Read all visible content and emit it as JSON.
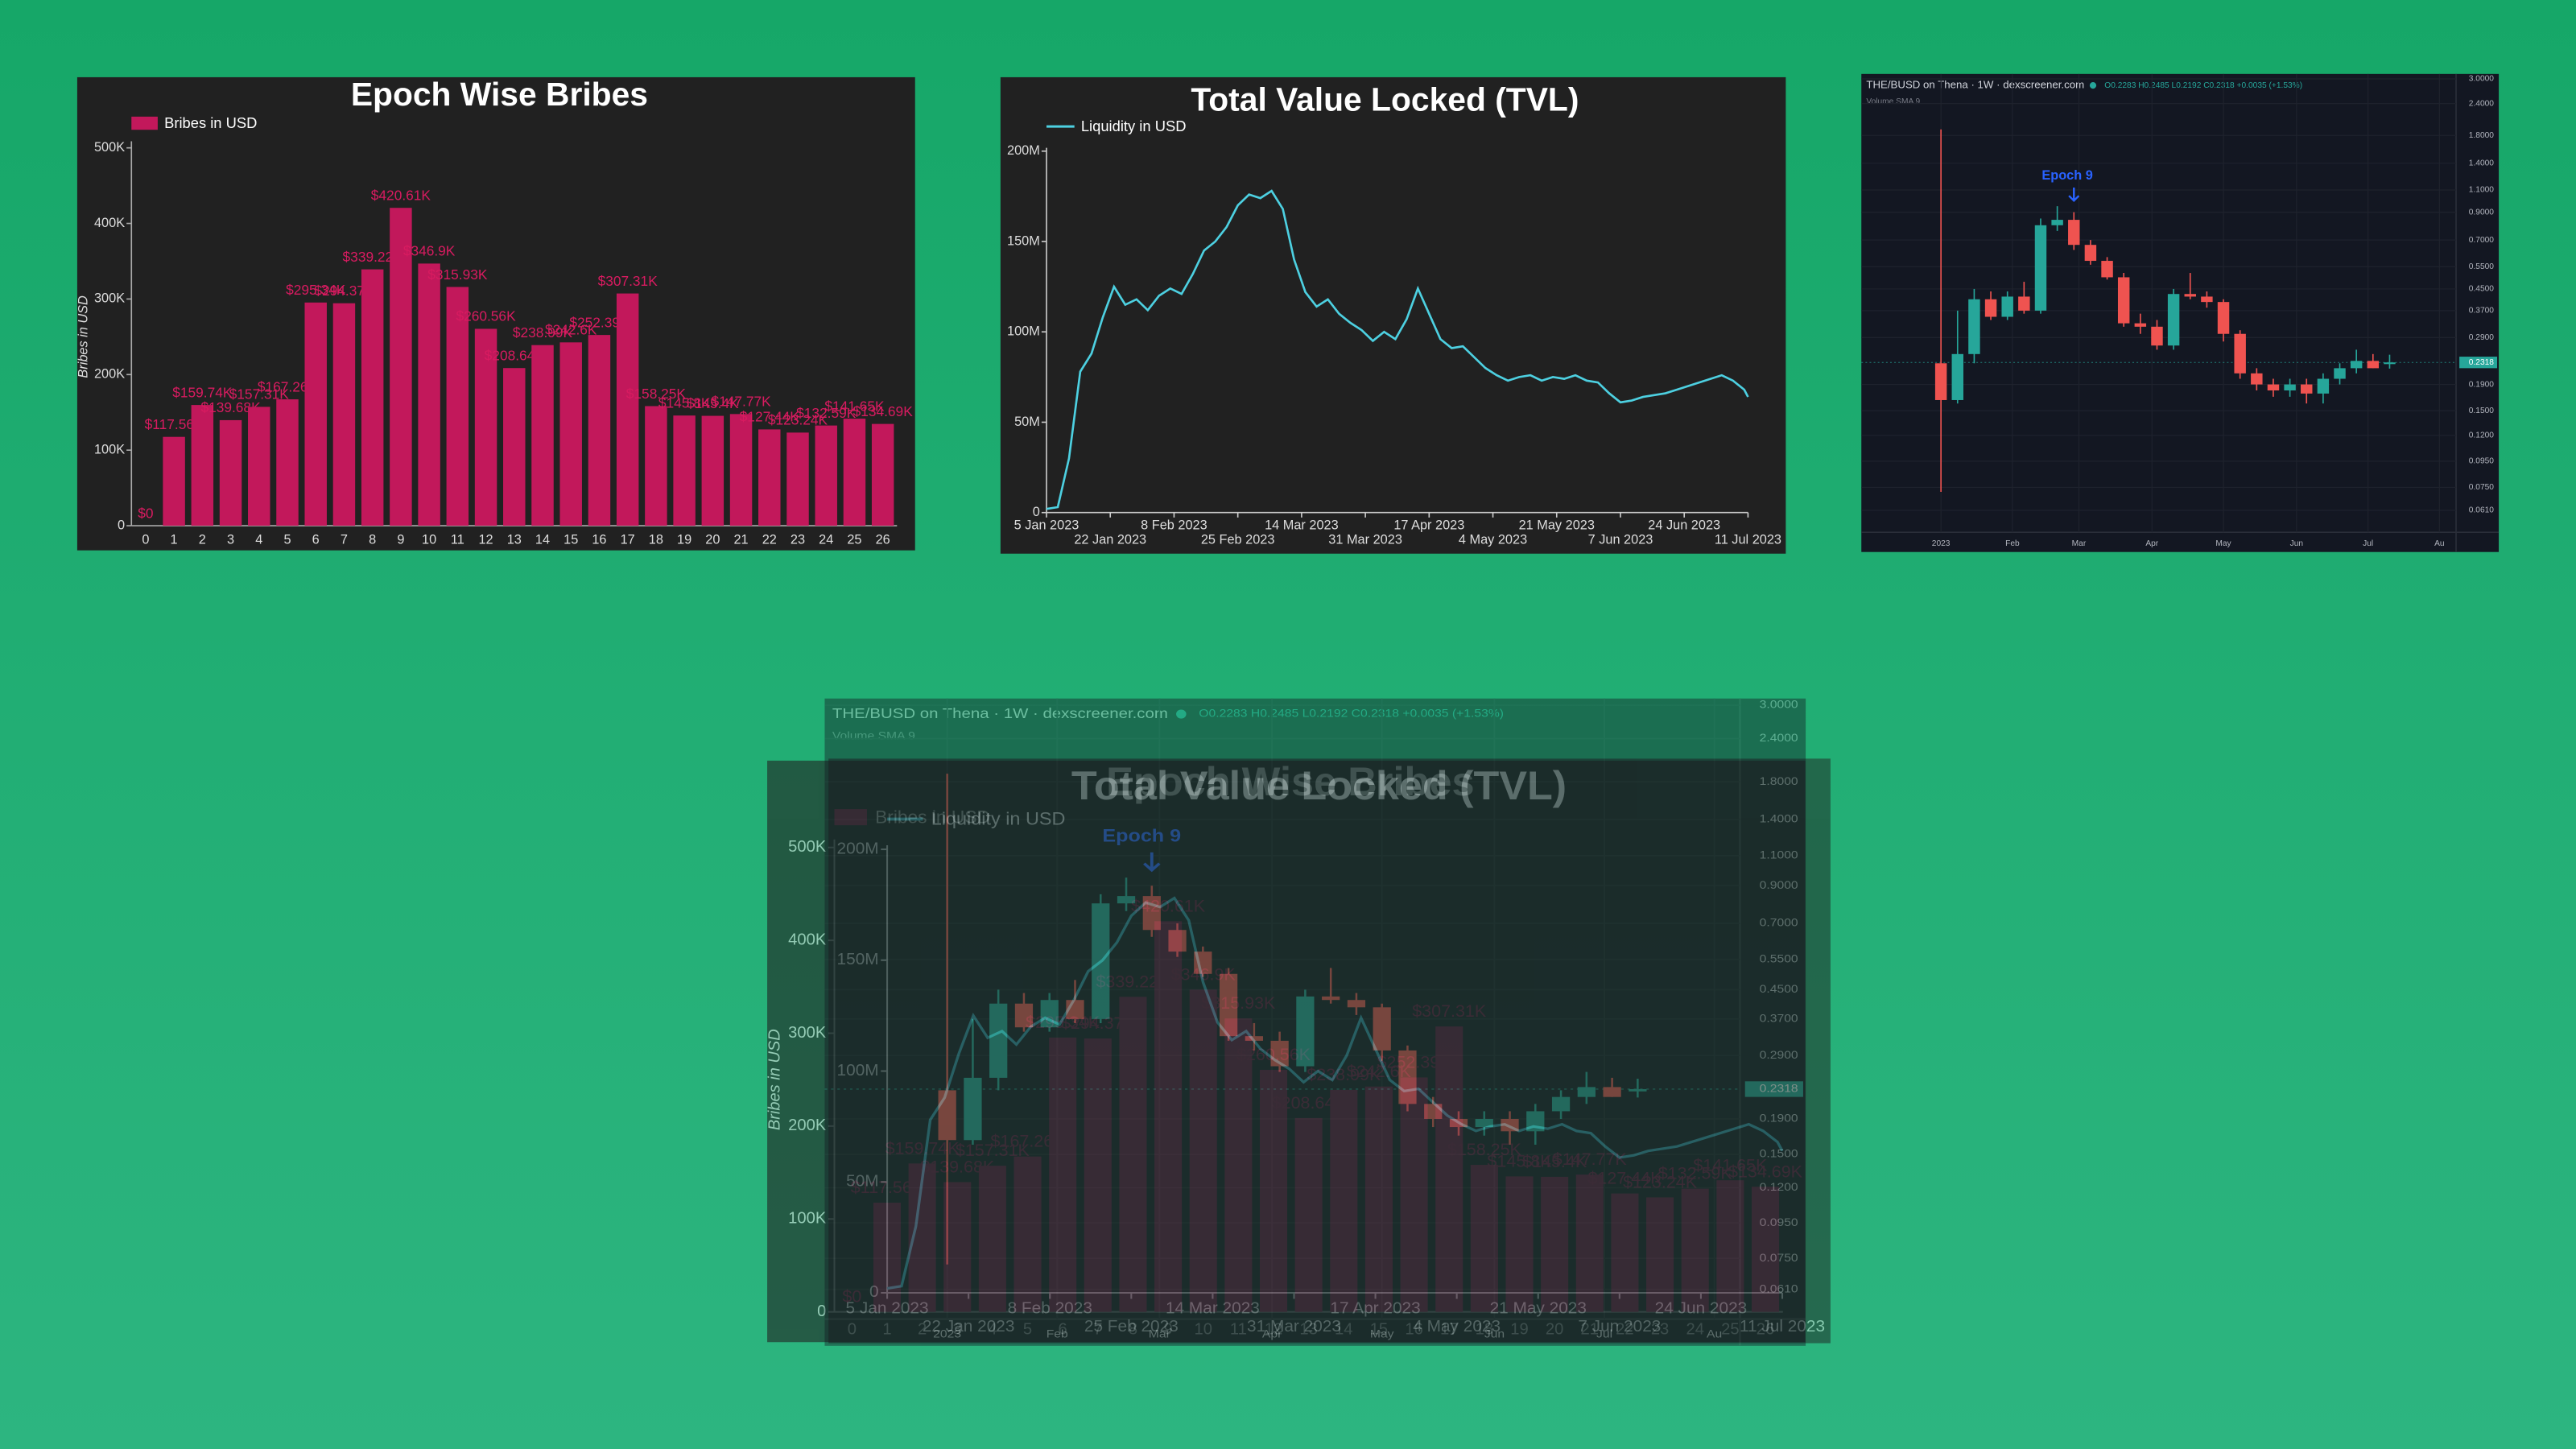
{
  "chart_data": [
    {
      "type": "bar",
      "title": "Epoch Wise Bribes",
      "ylabel": "Bribes in USD",
      "legend": "upper left",
      "categories": [
        "0",
        "1",
        "2",
        "3",
        "4",
        "5",
        "6",
        "7",
        "8",
        "9",
        "10",
        "11",
        "12",
        "13",
        "14",
        "15",
        "16",
        "17",
        "18",
        "19",
        "20",
        "21",
        "22",
        "23",
        "24",
        "25",
        "26"
      ],
      "series": [
        {
          "name": "Bribes in USD",
          "color": "#c2185b",
          "values": [
            0,
            117560,
            159740,
            139680,
            157310,
            167260,
            295340,
            294370,
            339220,
            420610,
            346900,
            315930,
            260560,
            208640,
            238990,
            242600,
            252390,
            307310,
            158250,
            145800,
            145400,
            147770,
            127440,
            123240,
            132590,
            141650,
            134690
          ],
          "value_labels": [
            "$0",
            "$117.56K",
            "$159.74K",
            "$139.68K",
            "$157.31K",
            "$167.26K",
            "$295.34K",
            "$294.37K",
            "$339.22K",
            "$420.61K",
            "$346.9K",
            "$315.93K",
            "$260.56K",
            "$208.64K",
            "$238.99K",
            "$242.6K",
            "$252.39K",
            "$307.31K",
            "$158.25K",
            "$145.8K",
            "$145.4K",
            "$147.77K",
            "$127.44K",
            "$123.24K",
            "$132.59K",
            "$141.65K",
            "$134.69K"
          ]
        }
      ],
      "ylim": [
        0,
        500000
      ],
      "yticks": [
        0,
        {
          "value": 100000,
          "label": "100K"
        },
        {
          "value": 200000,
          "label": "200K"
        },
        {
          "value": 300000,
          "label": "300K"
        },
        {
          "value": 400000,
          "label": "400K"
        },
        {
          "value": 500000,
          "label": "500K"
        }
      ]
    },
    {
      "type": "line",
      "title": "Total Value Locked (TVL)",
      "legend": "upper left",
      "x": [
        "2023-01-05",
        "2023-01-08",
        "2023-01-11",
        "2023-01-14",
        "2023-01-17",
        "2023-01-20",
        "2023-01-23",
        "2023-01-26",
        "2023-01-29",
        "2023-02-01",
        "2023-02-04",
        "2023-02-07",
        "2023-02-10",
        "2023-02-13",
        "2023-02-16",
        "2023-02-19",
        "2023-02-22",
        "2023-02-25",
        "2023-02-28",
        "2023-03-03",
        "2023-03-06",
        "2023-03-09",
        "2023-03-12",
        "2023-03-15",
        "2023-03-18",
        "2023-03-21",
        "2023-03-24",
        "2023-03-27",
        "2023-03-30",
        "2023-04-02",
        "2023-04-05",
        "2023-04-08",
        "2023-04-11",
        "2023-04-14",
        "2023-04-17",
        "2023-04-20",
        "2023-04-23",
        "2023-04-26",
        "2023-04-29",
        "2023-05-02",
        "2023-05-05",
        "2023-05-08",
        "2023-05-11",
        "2023-05-14",
        "2023-05-17",
        "2023-05-20",
        "2023-05-23",
        "2023-05-26",
        "2023-05-29",
        "2023-06-01",
        "2023-06-04",
        "2023-06-07",
        "2023-06-10",
        "2023-06-13",
        "2023-06-16",
        "2023-06-19",
        "2023-06-22",
        "2023-06-25",
        "2023-06-28",
        "2023-07-01",
        "2023-07-04",
        "2023-07-07",
        "2023-07-10",
        "2023-07-11"
      ],
      "series": [
        {
          "name": "Liquidity in USD",
          "color": "#4dd0e1",
          "values": [
            2000000,
            3000000,
            30000000,
            78000000,
            88000000,
            108000000,
            125000000,
            115000000,
            118000000,
            112000000,
            120000000,
            124000000,
            121000000,
            132000000,
            145000000,
            150000000,
            158000000,
            170000000,
            176000000,
            174000000,
            178000000,
            168000000,
            140000000,
            122000000,
            114000000,
            118000000,
            110000000,
            105000000,
            101000000,
            95000000,
            100000000,
            96000000,
            107000000,
            124000000,
            110000000,
            96000000,
            91000000,
            92000000,
            86000000,
            80000000,
            76000000,
            73000000,
            75000000,
            76000000,
            73000000,
            75000000,
            74000000,
            76000000,
            73000000,
            72000000,
            66000000,
            61000000,
            62000000,
            64000000,
            65000000,
            66000000,
            68000000,
            70000000,
            72000000,
            74000000,
            76000000,
            73000000,
            68000000,
            64000000
          ]
        }
      ],
      "xlim": [
        "2023-01-05",
        "2023-07-11"
      ],
      "xticks": [
        {
          "value": "2023-01-05",
          "label": "5 Jan 2023"
        },
        {
          "value": "2023-01-22",
          "label": "22 Jan 2023"
        },
        {
          "value": "2023-02-08",
          "label": "8 Feb 2023"
        },
        {
          "value": "2023-02-25",
          "label": "25 Feb 2023"
        },
        {
          "value": "2023-03-14",
          "label": "14 Mar 2023"
        },
        {
          "value": "2023-03-31",
          "label": "31 Mar 2023"
        },
        {
          "value": "2023-04-17",
          "label": "17 Apr 2023"
        },
        {
          "value": "2023-05-04",
          "label": "4 May 2023"
        },
        {
          "value": "2023-05-21",
          "label": "21 May 2023"
        },
        {
          "value": "2023-06-07",
          "label": "7 Jun 2023"
        },
        {
          "value": "2023-06-24",
          "label": "24 Jun 2023"
        },
        {
          "value": "2023-07-11",
          "label": "11 Jul 2023"
        }
      ],
      "ylim": [
        0,
        200000000
      ],
      "yticks": [
        0,
        {
          "value": 50000000,
          "label": "50M"
        },
        {
          "value": 100000000,
          "label": "100M"
        },
        {
          "value": 150000000,
          "label": "150M"
        },
        {
          "value": 200000000,
          "label": "200M"
        }
      ]
    },
    {
      "type": "candlestick",
      "title": "THE/BUSD on Thena · 1W · dexscreener.com",
      "subtitle": "O0.2283 H0.2485 L0.2192 C0.2318 +0.0035 (+1.53%)",
      "indicator": "Volume SMA 9",
      "annotation": "Epoch 9",
      "up_color": "#26a69a",
      "down_color": "#ef5350",
      "log_scale": true,
      "grid": true,
      "categories": [
        null,
        null,
        null,
        null,
        null,
        null,
        null,
        null,
        null,
        null,
        null,
        null,
        null,
        null,
        null,
        null,
        null,
        null,
        null,
        null,
        null,
        null,
        null,
        null,
        null,
        null,
        null,
        null
      ],
      "open": [
        0.23,
        0.165,
        0.25,
        0.41,
        0.35,
        0.42,
        0.37,
        0.8,
        0.84,
        0.67,
        0.58,
        0.5,
        0.33,
        0.32,
        0.27,
        0.43,
        0.42,
        0.4,
        0.3,
        0.21,
        0.19,
        0.18,
        0.19,
        0.175,
        0.2,
        0.22,
        0.235,
        0.2283
      ],
      "high": [
        1.9,
        0.37,
        0.45,
        0.44,
        0.44,
        0.48,
        0.85,
        0.95,
        0.9,
        0.7,
        0.6,
        0.52,
        0.36,
        0.34,
        0.45,
        0.52,
        0.44,
        0.41,
        0.31,
        0.22,
        0.2,
        0.2,
        0.2,
        0.21,
        0.23,
        0.26,
        0.25,
        0.2485
      ],
      "low": [
        0.072,
        0.16,
        0.23,
        0.34,
        0.34,
        0.36,
        0.36,
        0.76,
        0.64,
        0.56,
        0.49,
        0.32,
        0.3,
        0.26,
        0.26,
        0.41,
        0.38,
        0.28,
        0.2,
        0.18,
        0.17,
        0.17,
        0.16,
        0.16,
        0.19,
        0.21,
        0.22,
        0.2192
      ],
      "close": [
        0.165,
        0.25,
        0.41,
        0.35,
        0.42,
        0.37,
        0.8,
        0.84,
        0.67,
        0.58,
        0.5,
        0.33,
        0.32,
        0.27,
        0.43,
        0.42,
        0.4,
        0.3,
        0.21,
        0.19,
        0.18,
        0.19,
        0.175,
        0.2,
        0.22,
        0.235,
        0.22,
        0.2318
      ],
      "last_price": {
        "value": 0.2318,
        "label": "0.2318"
      },
      "xlim": [
        -4,
        31
      ],
      "xticks": [
        {
          "value": 0,
          "label": "2023"
        },
        {
          "value": 4.3,
          "label": "Feb"
        },
        {
          "value": 8.3,
          "label": "Mar"
        },
        {
          "value": 12.7,
          "label": "Apr"
        },
        {
          "value": 17,
          "label": "May"
        },
        {
          "value": 21.4,
          "label": "Jun"
        },
        {
          "value": 25.7,
          "label": "Jul"
        },
        {
          "value": 30,
          "label": "Au"
        }
      ],
      "ylim": [
        0.05,
        3.0
      ],
      "yticks": [
        {
          "value": 3.0,
          "label": "3.0000"
        },
        {
          "value": 2.4,
          "label": "2.4000"
        },
        {
          "value": 1.8,
          "label": "1.8000"
        },
        {
          "value": 1.4,
          "label": "1.4000"
        },
        {
          "value": 1.1,
          "label": "1.1000"
        },
        {
          "value": 0.9,
          "label": "0.9000"
        },
        {
          "value": 0.7,
          "label": "0.7000"
        },
        {
          "value": 0.55,
          "label": "0.5500"
        },
        {
          "value": 0.45,
          "label": "0.4500"
        },
        {
          "value": 0.37,
          "label": "0.3700"
        },
        {
          "value": 0.29,
          "label": "0.2900"
        },
        {
          "value": 0.19,
          "label": "0.1900"
        },
        {
          "value": 0.15,
          "label": "0.1500"
        },
        {
          "value": 0.12,
          "label": "0.1200"
        },
        {
          "value": 0.095,
          "label": "0.0950"
        },
        {
          "value": 0.075,
          "label": "0.0750"
        },
        {
          "value": 0.061,
          "label": "0.0610"
        }
      ]
    }
  ]
}
